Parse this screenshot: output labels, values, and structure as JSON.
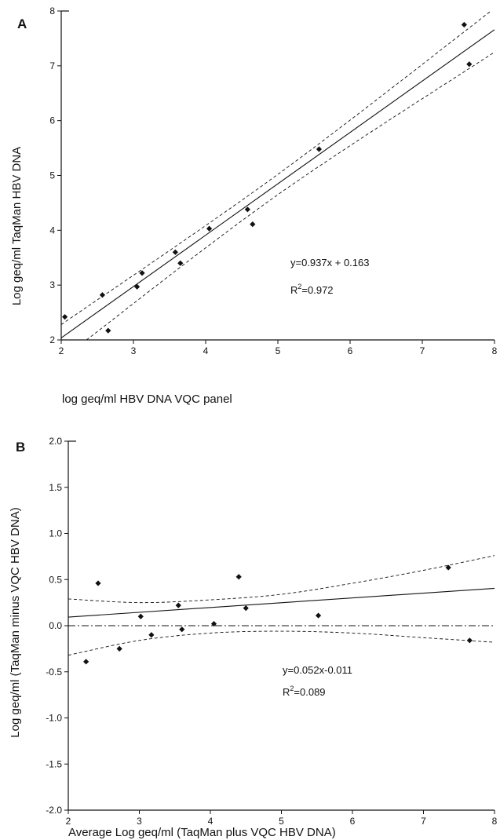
{
  "chart_data": [
    {
      "panel_label": "A",
      "type": "scatter",
      "title": "",
      "xlabel": "log geq/ml HBV DNA VQC panel",
      "ylabel": "Log geq/ml TaqMan HBV DNA",
      "xlim": [
        2,
        8
      ],
      "ylim": [
        2,
        8
      ],
      "x_ticks": [
        "2",
        "3",
        "4",
        "5",
        "6",
        "7",
        "8"
      ],
      "y_ticks": [
        "2",
        "3",
        "4",
        "5",
        "6",
        "7",
        "8"
      ],
      "grid": false,
      "points": [
        {
          "x": 2.05,
          "y": 2.42
        },
        {
          "x": 2.57,
          "y": 2.82
        },
        {
          "x": 2.65,
          "y": 2.17
        },
        {
          "x": 3.05,
          "y": 2.97
        },
        {
          "x": 3.12,
          "y": 3.22
        },
        {
          "x": 3.58,
          "y": 3.6
        },
        {
          "x": 3.65,
          "y": 3.4
        },
        {
          "x": 4.05,
          "y": 4.03
        },
        {
          "x": 4.58,
          "y": 4.38
        },
        {
          "x": 4.65,
          "y": 4.11
        },
        {
          "x": 5.57,
          "y": 5.48
        },
        {
          "x": 7.58,
          "y": 7.75
        },
        {
          "x": 7.65,
          "y": 7.03
        }
      ],
      "regression": {
        "slope": 0.937,
        "intercept": 0.163
      },
      "ci_upper": [
        {
          "x": 2.0,
          "y": 2.28
        },
        {
          "x": 5.0,
          "y": 5.02
        },
        {
          "x": 8.0,
          "y": 8.05
        }
      ],
      "ci_lower": [
        {
          "x": 2.35,
          "y": 2.0
        },
        {
          "x": 5.0,
          "y": 4.65
        },
        {
          "x": 8.0,
          "y": 7.25
        }
      ],
      "annotations": [
        "y=0.937x + 0.163",
        "R",
        "2",
        "=0.972"
      ]
    },
    {
      "panel_label": "B",
      "type": "scatter",
      "title": "",
      "xlabel": "Average Log geq/ml (TaqMan plus VQC HBV DNA)",
      "ylabel": "Log geq/ml (TaqMan minus VQC HBV DNA)",
      "xlim": [
        2,
        8
      ],
      "ylim": [
        -2.0,
        2.0
      ],
      "x_ticks": [
        "2",
        "3",
        "4",
        "5",
        "6",
        "7",
        "8"
      ],
      "y_ticks": [
        "-2.0",
        "-1.5",
        "-1.0",
        "-0.5",
        "0.0",
        "0.5",
        "1.0",
        "1.5",
        "2.0"
      ],
      "grid": false,
      "points": [
        {
          "x": 2.25,
          "y": -0.39
        },
        {
          "x": 2.42,
          "y": 0.46
        },
        {
          "x": 2.72,
          "y": -0.25
        },
        {
          "x": 3.02,
          "y": 0.1
        },
        {
          "x": 3.17,
          "y": -0.1
        },
        {
          "x": 3.55,
          "y": 0.22
        },
        {
          "x": 3.6,
          "y": -0.04
        },
        {
          "x": 4.05,
          "y": 0.02
        },
        {
          "x": 4.4,
          "y": 0.53
        },
        {
          "x": 4.5,
          "y": 0.19
        },
        {
          "x": 5.52,
          "y": 0.11
        },
        {
          "x": 7.35,
          "y": 0.63
        },
        {
          "x": 7.65,
          "y": -0.16
        }
      ],
      "regression": {
        "slope": 0.052,
        "intercept": -0.011
      },
      "zero_line": 0.0,
      "ci_upper": [
        {
          "x": 2.0,
          "y": 0.29
        },
        {
          "x": 3.0,
          "y": 0.25
        },
        {
          "x": 4.0,
          "y": 0.28
        },
        {
          "x": 5.0,
          "y": 0.34
        },
        {
          "x": 6.0,
          "y": 0.46
        },
        {
          "x": 7.0,
          "y": 0.6
        },
        {
          "x": 8.0,
          "y": 0.76
        }
      ],
      "ci_lower": [
        {
          "x": 2.0,
          "y": -0.32
        },
        {
          "x": 3.0,
          "y": -0.16
        },
        {
          "x": 4.0,
          "y": -0.08
        },
        {
          "x": 5.0,
          "y": -0.06
        },
        {
          "x": 6.0,
          "y": -0.08
        },
        {
          "x": 7.0,
          "y": -0.13
        },
        {
          "x": 8.0,
          "y": -0.18
        }
      ],
      "annotations": [
        "y=0.052x-0.011",
        "R",
        "2",
        "=0.089"
      ]
    }
  ]
}
